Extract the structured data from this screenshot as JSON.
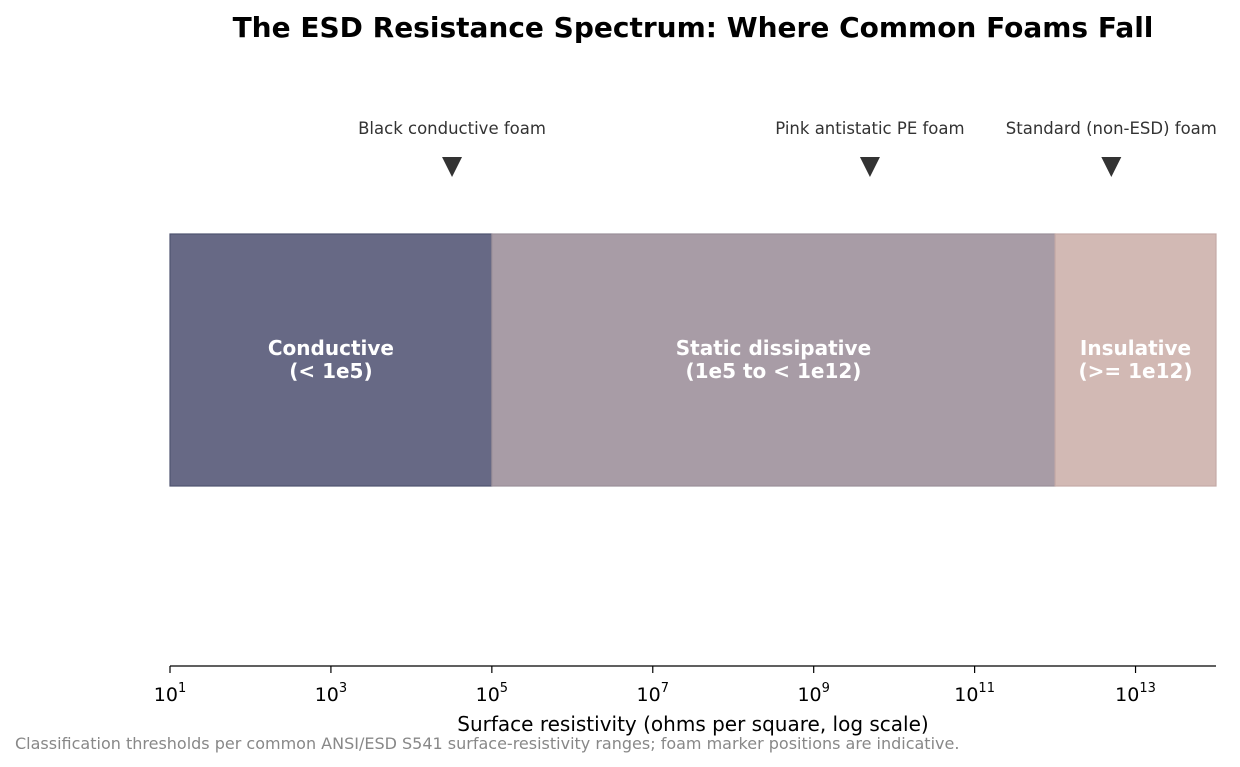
{
  "chart_data": {
    "type": "bar",
    "title": "The ESD Resistance Spectrum: Where Common Foams Fall",
    "xlabel": "Surface resistivity (ohms per square, log scale)",
    "ylabel": "",
    "x_scale": "log",
    "xlim": [
      10,
      100000000000000.0
    ],
    "grid": false,
    "x_ticks": [
      {
        "base": "10",
        "exp": "1",
        "value": 10.0
      },
      {
        "base": "10",
        "exp": "3",
        "value": 1000.0
      },
      {
        "base": "10",
        "exp": "5",
        "value": 100000.0
      },
      {
        "base": "10",
        "exp": "7",
        "value": 10000000.0
      },
      {
        "base": "10",
        "exp": "9",
        "value": 1000000000.0
      },
      {
        "base": "10",
        "exp": "11",
        "value": 100000000000.0
      },
      {
        "base": "10",
        "exp": "13",
        "value": 10000000000000.0
      }
    ],
    "bands": [
      {
        "name": "Conductive",
        "range_label": "(< 1e5)",
        "start": 10.0,
        "end": 100000.0,
        "color": "#676985",
        "border": "#4f5370"
      },
      {
        "name": "Static dissipative",
        "range_label": "(1e5 to < 1e12)",
        "start": 100000.0,
        "end": 1000000000000.0,
        "color": "#a89ca6",
        "border": "#9a8f9a"
      },
      {
        "name": "Insulative",
        "range_label": "(>= 1e12)",
        "start": 1000000000000.0,
        "end": 100000000000000.0,
        "color": "#d2b9b4",
        "border": "#c4aaa6"
      }
    ],
    "markers": [
      {
        "label": "Black conductive foam",
        "value": 32000.0
      },
      {
        "label": "Pink antistatic PE foam",
        "value": 5000000000.0
      },
      {
        "label": "Standard (non-ESD) foam",
        "value": 5000000000000.0
      }
    ],
    "marker_color": "#333333",
    "footnote": "Classification thresholds per common ANSI/ESD S541 surface-resistivity ranges; foam marker positions are indicative."
  }
}
